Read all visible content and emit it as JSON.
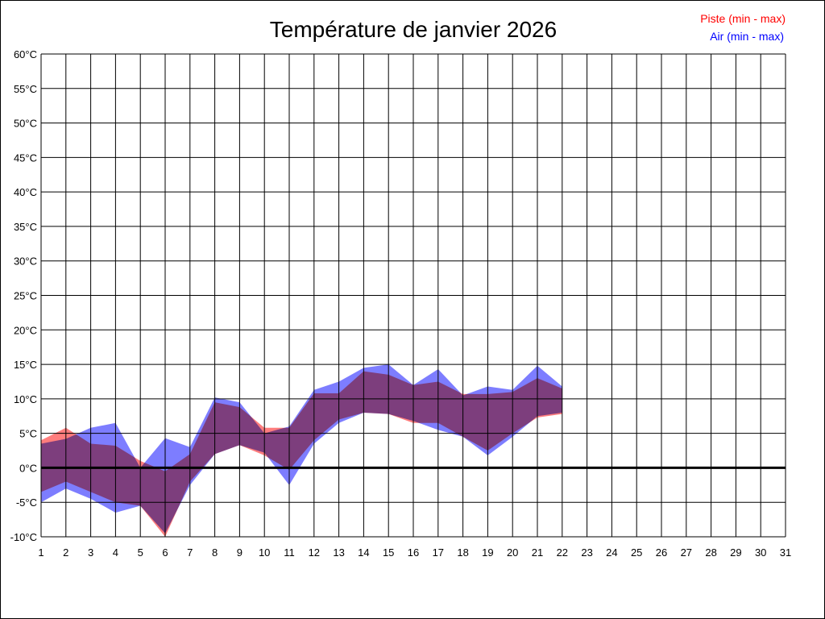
{
  "chart_data": {
    "type": "area",
    "title": "Température de janvier 2026",
    "xlabel": "",
    "ylabel": "",
    "x": [
      1,
      2,
      3,
      4,
      5,
      6,
      7,
      8,
      9,
      10,
      11,
      12,
      13,
      14,
      15,
      16,
      17,
      18,
      19,
      20,
      21,
      22
    ],
    "x_ticks": [
      "1",
      "2",
      "3",
      "4",
      "5",
      "6",
      "7",
      "8",
      "9",
      "10",
      "11",
      "12",
      "13",
      "14",
      "15",
      "16",
      "17",
      "18",
      "19",
      "20",
      "21",
      "22",
      "23",
      "24",
      "25",
      "26",
      "27",
      "28",
      "29",
      "30",
      "31"
    ],
    "xlim": [
      1,
      31
    ],
    "y_ticks": [
      "60°C",
      "55°C",
      "50°C",
      "45°C",
      "40°C",
      "35°C",
      "30°C",
      "25°C",
      "20°C",
      "15°C",
      "10°C",
      "5°C",
      "0°C",
      "-5°C",
      "-10°C"
    ],
    "ylim": [
      -10,
      60
    ],
    "grid": true,
    "zero_line": true,
    "legend_position": "top-right",
    "series": [
      {
        "name": "Piste (min - max)",
        "color": "#ff0000",
        "fill": "#ff6666",
        "min": [
          -3.5,
          -2,
          -3.5,
          -5,
          -5.5,
          -10,
          -2,
          2,
          3.3,
          1.8,
          -0.3,
          4,
          7,
          8,
          7.8,
          6.5,
          6.5,
          4.5,
          2.5,
          5,
          7.3,
          7.8
        ],
        "max": [
          4,
          5.8,
          3.5,
          3.2,
          1,
          -0.5,
          2,
          9.5,
          8.8,
          5.8,
          5.8,
          10.8,
          10.8,
          14,
          13.5,
          12,
          12.5,
          10.7,
          10.7,
          11,
          13,
          11.5
        ]
      },
      {
        "name": "Air (min - max)",
        "color": "#0000ff",
        "fill": "#6666ff",
        "min": [
          -5,
          -3,
          -4.5,
          -6.5,
          -5.5,
          -9.5,
          -2.5,
          2,
          3.3,
          2.2,
          -2.5,
          3.5,
          6.5,
          8,
          7.8,
          6.8,
          5.5,
          4.5,
          1.8,
          4.5,
          7.5,
          8
        ],
        "max": [
          3.5,
          4.2,
          5.8,
          6.5,
          0,
          4.3,
          3,
          10.2,
          9.5,
          5,
          6,
          11.3,
          12.5,
          14.5,
          15,
          12,
          14.3,
          10.5,
          11.8,
          11.3,
          14.8,
          11.8
        ]
      }
    ]
  }
}
